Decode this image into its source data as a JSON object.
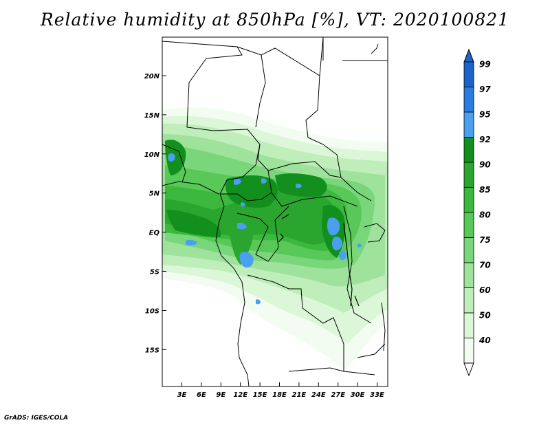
{
  "title": "Relative humidity at 850hPa [%], VT: 2020100821",
  "footer": "GrADS: IGES/COLA",
  "map": {
    "lon_range": [
      0,
      36
    ],
    "lat_range": [
      -20,
      25
    ],
    "x_ticks": [
      "3E",
      "6E",
      "9E",
      "12E",
      "15E",
      "18E",
      "21E",
      "24E",
      "27E",
      "30E",
      "33E"
    ],
    "y_ticks": [
      "20N",
      "15N",
      "10N",
      "5N",
      "EQ",
      "5S",
      "10S",
      "15S"
    ]
  },
  "colorbar": {
    "labels": [
      "99",
      "97",
      "95",
      "92",
      "90",
      "85",
      "80",
      "75",
      "70",
      "60",
      "50",
      "40"
    ],
    "colors": [
      "#1d63c8",
      "#2b7de0",
      "#4a9ff0",
      "#128f1d",
      "#2aa52e",
      "#3cb83e",
      "#58c858",
      "#7ad67a",
      "#9ee29c",
      "#bfeebb",
      "#dcf7d8",
      "#f2fcf0"
    ]
  }
}
